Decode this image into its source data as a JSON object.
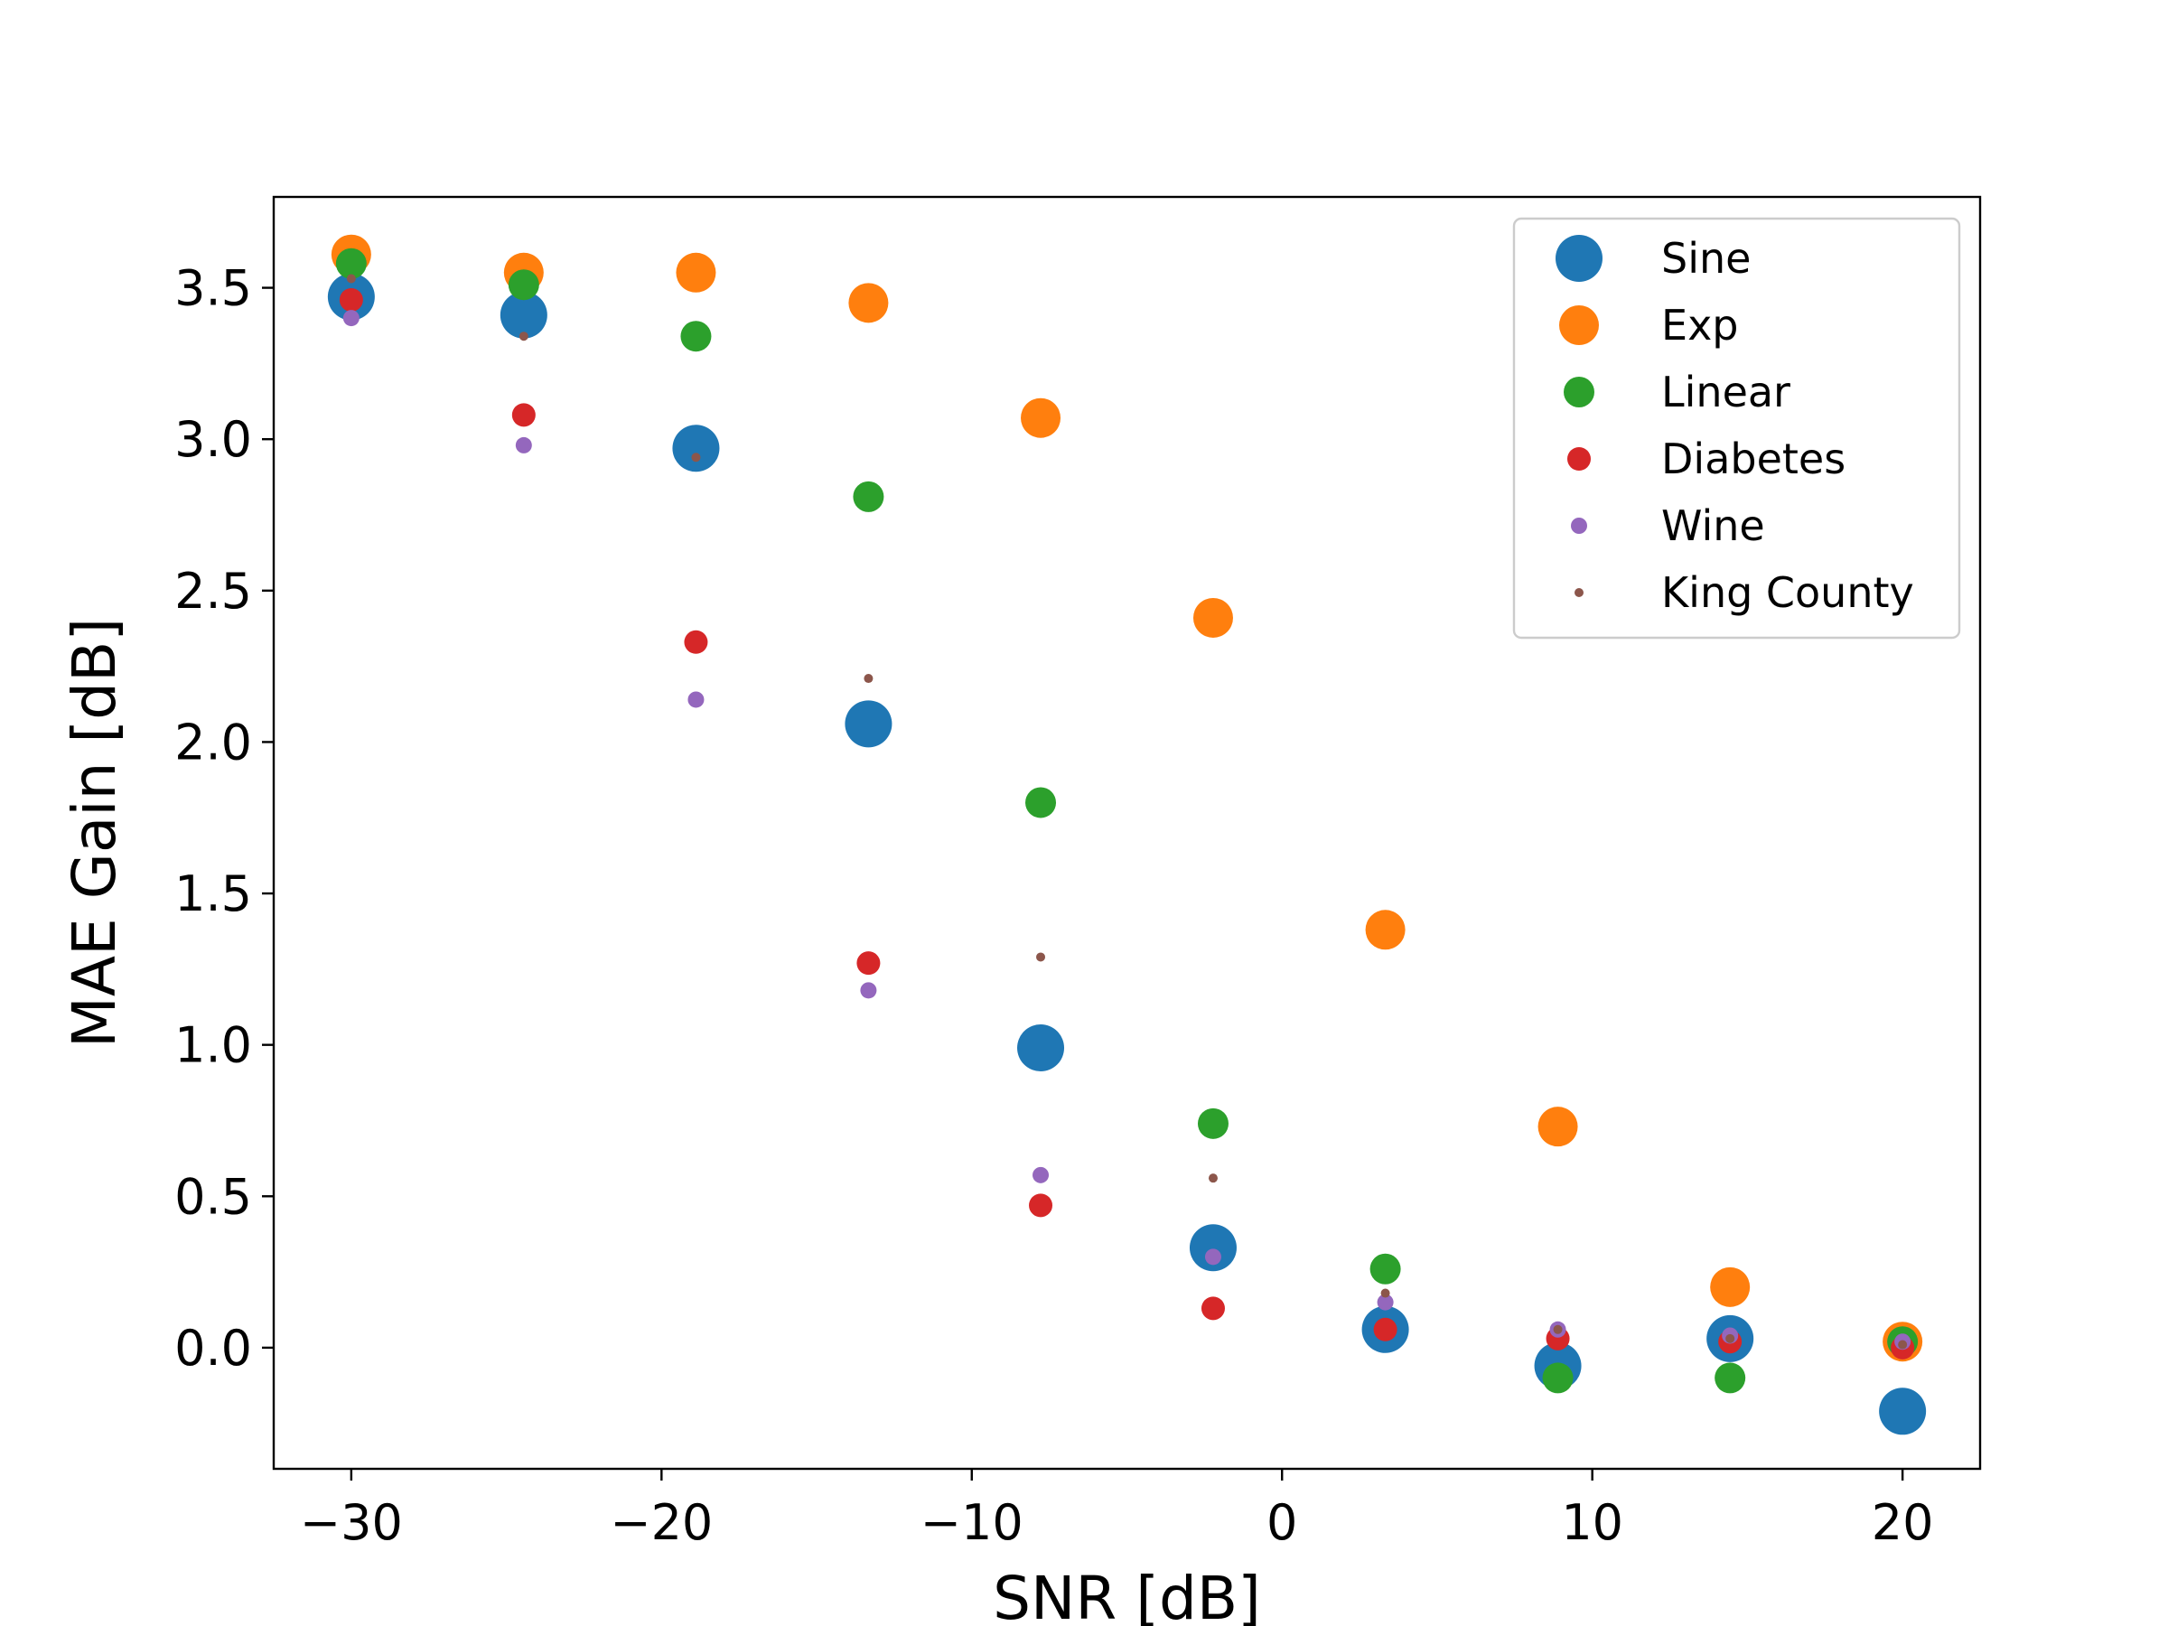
{
  "chart_data": {
    "type": "scatter",
    "title": "",
    "xlabel": "SNR [dB]",
    "ylabel": "MAE Gain [dB]",
    "xlim": [
      -32.5,
      22.5
    ],
    "ylim": [
      -0.4,
      3.8
    ],
    "xticks": [
      -30,
      -20,
      -10,
      0,
      10,
      20
    ],
    "xtick_labels": [
      "−30",
      "−20",
      "−10",
      "0",
      "10",
      "20"
    ],
    "yticks": [
      0.0,
      0.5,
      1.0,
      1.5,
      2.0,
      2.5,
      3.0,
      3.5
    ],
    "ytick_labels": [
      "0.0",
      "0.5",
      "1.0",
      "1.5",
      "2.0",
      "2.5",
      "3.0",
      "3.5"
    ],
    "grid": false,
    "legend_position": "top-right",
    "x": [
      -30,
      -24.44,
      -18.89,
      -13.33,
      -7.78,
      -2.22,
      3.33,
      8.89,
      14.44,
      20
    ],
    "series": [
      {
        "name": "Sine",
        "color": "#1f77b4",
        "size": "largest",
        "values": [
          3.47,
          3.41,
          2.97,
          2.06,
          0.99,
          0.33,
          0.06,
          -0.06,
          0.03,
          -0.21
        ]
      },
      {
        "name": "Exp",
        "color": "#ff7f0e",
        "size": "large",
        "values": [
          3.61,
          3.55,
          3.55,
          3.45,
          3.07,
          2.41,
          1.38,
          0.73,
          0.2,
          0.02
        ]
      },
      {
        "name": "Linear",
        "color": "#2ca02c",
        "size": "medium",
        "values": [
          3.58,
          3.51,
          3.34,
          2.81,
          1.8,
          0.74,
          0.26,
          -0.1,
          -0.1,
          0.02
        ]
      },
      {
        "name": "Diabetes",
        "color": "#d62728",
        "size": "small",
        "values": [
          3.46,
          3.08,
          2.33,
          1.27,
          0.47,
          0.13,
          0.06,
          0.03,
          0.02,
          0.0
        ]
      },
      {
        "name": "Wine",
        "color": "#9467bd",
        "size": "smaller",
        "values": [
          3.4,
          2.98,
          2.14,
          1.18,
          0.57,
          0.3,
          0.15,
          0.06,
          0.04,
          0.02
        ]
      },
      {
        "name": "King County",
        "color": "#8c564b",
        "size": "smallest",
        "values": [
          3.53,
          3.34,
          2.94,
          2.21,
          1.29,
          0.56,
          0.18,
          0.06,
          0.03,
          0.01
        ]
      }
    ]
  }
}
